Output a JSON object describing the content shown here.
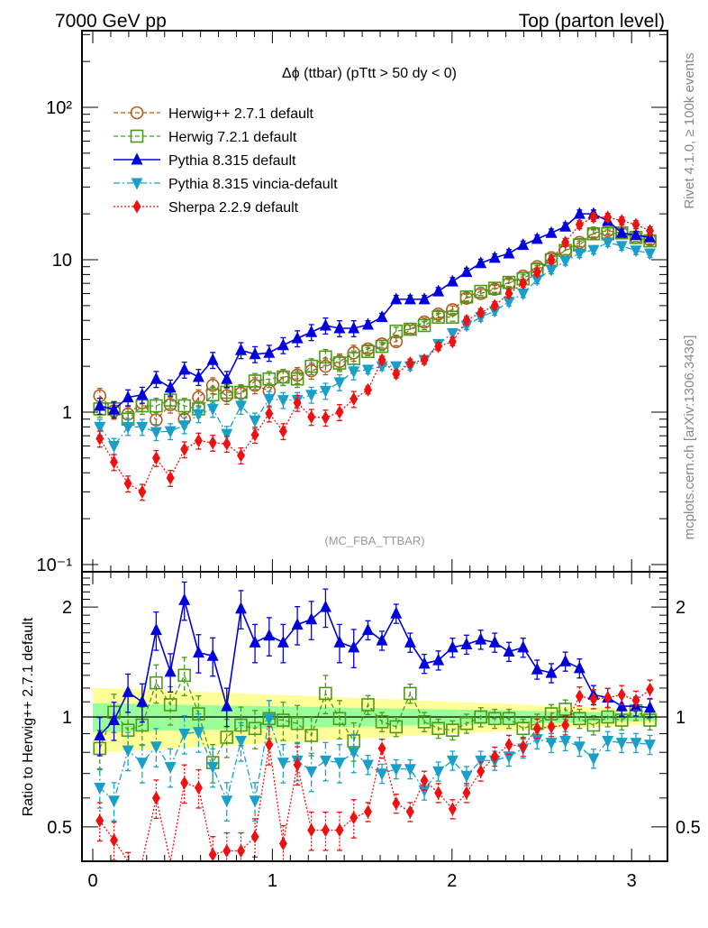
{
  "header": {
    "left": "7000 GeV pp",
    "right": "Top (parton level)"
  },
  "side_labels": {
    "rivet": "Rivet 4.1.0, ≥ 100k events",
    "mcplots": "mcplots.cern.ch [arXiv:1306.3436]"
  },
  "chart_data": [
    {
      "type": "line",
      "panel": "main",
      "title": "Δϕ (ttbar) (pTtt > 50 dy < 0)",
      "analysis_tag": "(MC_FBA_TTBAR)",
      "xlabel": "",
      "ylabel": "",
      "yscale": "log",
      "xlim": [
        -0.06,
        3.2
      ],
      "ylim": [
        0.09,
        300
      ],
      "x_ticks": [
        0,
        1,
        2,
        3
      ],
      "y_ticks": [
        {
          "value": 0.1,
          "label": "10⁻¹"
        },
        {
          "value": 1,
          "label": "1"
        },
        {
          "value": 10,
          "label": "10"
        },
        {
          "value": 100,
          "label": "10²"
        }
      ],
      "legend_position": "top-left",
      "x": [
        0.039,
        0.118,
        0.196,
        0.275,
        0.353,
        0.432,
        0.51,
        0.589,
        0.668,
        0.746,
        0.825,
        0.903,
        0.982,
        1.06,
        1.139,
        1.217,
        1.296,
        1.374,
        1.453,
        1.532,
        1.61,
        1.689,
        1.767,
        1.846,
        1.924,
        2.003,
        2.081,
        2.16,
        2.238,
        2.317,
        2.396,
        2.474,
        2.553,
        2.631,
        2.71,
        2.788,
        2.867,
        2.945,
        3.024,
        3.102
      ],
      "series": [
        {
          "name": "Herwig++ 2.7.1 default",
          "color": "#b35a1f",
          "marker": "open-circle",
          "line": "dashed",
          "values": [
            1.28,
            1.02,
            0.97,
            1.15,
            0.89,
            1.12,
            0.9,
            1.25,
            1.5,
            1.28,
            1.33,
            1.5,
            1.38,
            1.7,
            1.75,
            1.87,
            2.0,
            2.15,
            2.45,
            2.6,
            2.8,
            2.9,
            3.5,
            3.9,
            4.4,
            4.7,
            5.6,
            6.0,
            6.4,
            7.0,
            7.8,
            9.0,
            10.3,
            11.5,
            13.0,
            15.0,
            15.5,
            15.0,
            14.0,
            13.5
          ]
        },
        {
          "name": "Herwig 7.2.1 default",
          "color": "#4c9a1a",
          "marker": "open-square",
          "line": "dashed",
          "values": [
            1.05,
            1.05,
            0.9,
            1.1,
            1.1,
            1.2,
            1.1,
            1.05,
            1.3,
            1.35,
            1.35,
            1.6,
            1.65,
            1.7,
            1.65,
            2.0,
            2.3,
            2.1,
            2.25,
            2.5,
            2.7,
            3.4,
            3.5,
            3.7,
            4.2,
            4.2,
            5.7,
            6.2,
            6.5,
            7.1,
            7.5,
            8.6,
            10.0,
            11.5,
            12.5,
            14.8,
            14.8,
            15.0,
            14.0,
            13.3
          ]
        },
        {
          "name": "Pythia 8.315 default",
          "color": "#0000dd",
          "marker": "filled-triangle-up",
          "line": "solid",
          "values": [
            1.1,
            1.04,
            1.25,
            1.3,
            1.65,
            1.45,
            1.9,
            1.7,
            2.2,
            1.65,
            2.55,
            2.4,
            2.45,
            2.75,
            3.05,
            3.35,
            3.7,
            3.55,
            3.55,
            3.75,
            4.2,
            5.5,
            5.5,
            5.5,
            6.2,
            7.2,
            8.3,
            9.5,
            10.3,
            11.0,
            12.5,
            13.7,
            15.0,
            16.5,
            20.0,
            20.0,
            18.0,
            15.0,
            14.5,
            14.0
          ]
        },
        {
          "name": "Pythia 8.315 vincia-default",
          "color": "#1aa0c8",
          "marker": "filled-triangle-down",
          "line": "dashdot",
          "values": [
            0.8,
            0.6,
            0.8,
            0.8,
            0.74,
            0.75,
            0.82,
            0.97,
            1.05,
            0.72,
            1.1,
            0.88,
            1.22,
            1.2,
            1.2,
            1.3,
            1.38,
            1.57,
            1.85,
            1.9,
            2.0,
            2.0,
            2.0,
            2.2,
            2.8,
            3.3,
            3.7,
            4.2,
            4.6,
            5.3,
            6.0,
            7.4,
            8.6,
            9.8,
            11.0,
            11.6,
            13.0,
            12.3,
            11.5,
            11.0
          ]
        },
        {
          "name": "Sherpa 2.2.9 default",
          "color": "#ee1111",
          "marker": "filled-diamond",
          "line": "dotted",
          "values": [
            0.67,
            0.47,
            0.34,
            0.3,
            0.5,
            0.37,
            0.57,
            0.65,
            0.63,
            0.62,
            0.52,
            0.71,
            0.98,
            0.75,
            1.15,
            0.93,
            0.92,
            1.0,
            1.22,
            1.4,
            2.2,
            1.78,
            2.1,
            2.2,
            2.7,
            2.9,
            4.0,
            4.5,
            5.0,
            6.0,
            7.0,
            8.3,
            10.0,
            13.0,
            17.0,
            19.0,
            19.0,
            18.0,
            17.0,
            15.5
          ]
        }
      ]
    },
    {
      "type": "line",
      "panel": "ratio",
      "ylabel": "Ratio to Herwig++ 2.7.1 default",
      "xlabel": "",
      "yscale": "log",
      "xlim": [
        -0.06,
        3.2
      ],
      "ylim": [
        0.4,
        2.48
      ],
      "x_ticks": [
        0,
        1,
        2,
        3
      ],
      "y_ticks": [
        {
          "value": 0.5,
          "label": "0.5"
        },
        {
          "value": 1,
          "label": "1"
        },
        {
          "value": 2,
          "label": "2"
        }
      ],
      "reference_band": {
        "inner_color": "#99ff99",
        "outer_color": "#ffff99",
        "inner_halfwidth_start": 0.09,
        "inner_halfwidth_end": 0.025,
        "outer_halfwidth_start": 0.2,
        "outer_halfwidth_end": 0.045
      },
      "x": [
        0.039,
        0.118,
        0.196,
        0.275,
        0.353,
        0.432,
        0.51,
        0.589,
        0.668,
        0.746,
        0.825,
        0.903,
        0.982,
        1.06,
        1.139,
        1.217,
        1.296,
        1.374,
        1.453,
        1.532,
        1.61,
        1.689,
        1.767,
        1.846,
        1.924,
        2.003,
        2.081,
        2.16,
        2.238,
        2.317,
        2.396,
        2.474,
        2.553,
        2.631,
        2.71,
        2.788,
        2.867,
        2.945,
        3.024,
        3.102
      ],
      "series": [
        {
          "name": "Herwig 7.2.1 default",
          "color": "#4c9a1a",
          "marker": "open-square",
          "line": "dashed",
          "values": [
            0.82,
            1.03,
            0.92,
            0.95,
            1.24,
            1.08,
            1.3,
            1.02,
            0.75,
            0.88,
            0.95,
            0.93,
            0.99,
            0.98,
            0.96,
            0.89,
            1.16,
            0.99,
            0.86,
            1.08,
            0.97,
            0.94,
            1.16,
            0.97,
            0.93,
            0.92,
            0.96,
            1.0,
            0.99,
            0.99,
            0.93,
            0.96,
            1.02,
            1.05,
            0.99,
            0.95,
            1.0,
            0.98,
            1.04,
            0.98
          ]
        },
        {
          "name": "Pythia 8.315 default",
          "color": "#0000dd",
          "marker": "filled-triangle-up",
          "line": "solid",
          "values": [
            0.89,
            0.98,
            1.17,
            1.1,
            1.73,
            1.33,
            2.09,
            1.5,
            1.47,
            1.07,
            1.98,
            1.6,
            1.67,
            1.6,
            1.79,
            1.85,
            2.0,
            1.6,
            1.55,
            1.73,
            1.62,
            1.92,
            1.6,
            1.4,
            1.43,
            1.55,
            1.58,
            1.63,
            1.6,
            1.51,
            1.55,
            1.35,
            1.32,
            1.42,
            1.36,
            1.15,
            1.13,
            1.07,
            1.07,
            1.06
          ]
        },
        {
          "name": "Pythia 8.315 vincia-default",
          "color": "#1aa0c8",
          "marker": "filled-triangle-down",
          "line": "dashdot",
          "values": [
            0.64,
            0.59,
            0.81,
            0.75,
            0.83,
            0.73,
            0.9,
            0.91,
            0.73,
            0.59,
            0.86,
            0.59,
            0.99,
            0.75,
            0.76,
            0.71,
            0.76,
            0.75,
            0.8,
            0.74,
            0.7,
            0.72,
            0.72,
            0.63,
            0.71,
            0.76,
            0.69,
            0.76,
            0.76,
            0.78,
            0.82,
            0.87,
            0.85,
            0.86,
            0.83,
            0.77,
            0.86,
            0.85,
            0.85,
            0.84
          ]
        },
        {
          "name": "Sherpa 2.2.9 default",
          "color": "#ee1111",
          "marker": "filled-diamond",
          "line": "dotted",
          "values": [
            0.52,
            0.46,
            0.38,
            0.26,
            0.6,
            0.33,
            0.66,
            0.64,
            0.42,
            0.43,
            0.43,
            0.47,
            0.84,
            0.45,
            0.74,
            0.49,
            0.49,
            0.49,
            0.53,
            0.55,
            0.82,
            0.58,
            0.55,
            0.67,
            0.62,
            0.56,
            0.62,
            0.71,
            0.78,
            0.84,
            0.83,
            0.93,
            0.94,
            0.95,
            1.14,
            1.12,
            1.13,
            1.15,
            1.11,
            1.19
          ]
        }
      ]
    }
  ]
}
